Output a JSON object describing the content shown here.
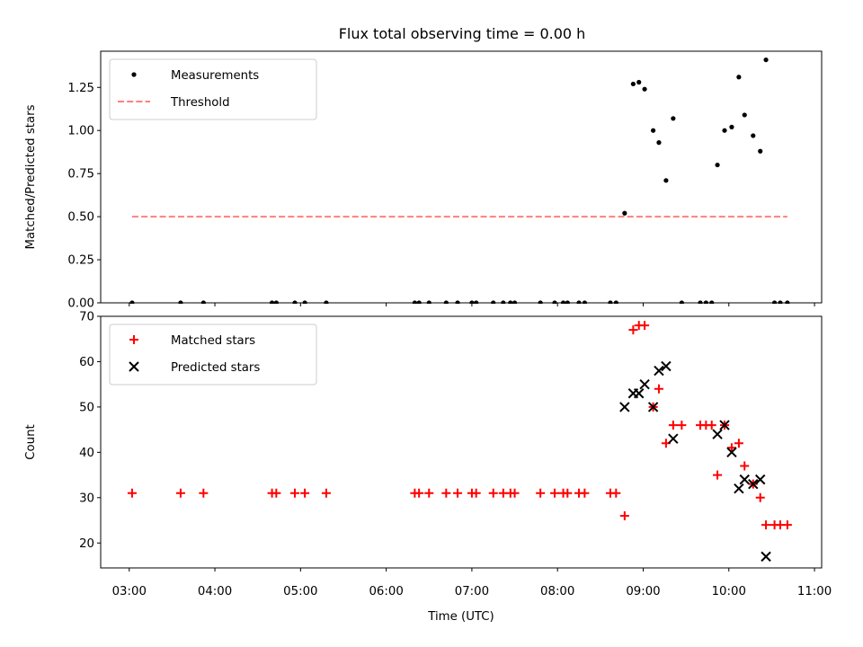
{
  "chart_data": [
    {
      "type": "scatter",
      "title": "Flux total observing time = 0.00 h",
      "ylabel": "Matched/Predicted stars",
      "xlabel": "",
      "xlim": [
        "02:40",
        "11:05"
      ],
      "ylim": [
        0,
        1.46
      ],
      "yticks": [
        "0.00",
        "0.25",
        "0.50",
        "0.75",
        "1.00",
        "1.25"
      ],
      "legend_position": "top-left",
      "series": [
        {
          "name": "Measurements",
          "marker": "dot",
          "color": "#000000",
          "points": [
            [
              "03:02",
              0
            ],
            [
              "03:36",
              0
            ],
            [
              "03:52",
              0
            ],
            [
              "04:40",
              0
            ],
            [
              "04:43",
              0
            ],
            [
              "04:56",
              0
            ],
            [
              "05:03",
              0
            ],
            [
              "05:18",
              0
            ],
            [
              "06:20",
              0
            ],
            [
              "06:23",
              0
            ],
            [
              "06:30",
              0
            ],
            [
              "06:42",
              0
            ],
            [
              "06:50",
              0
            ],
            [
              "07:00",
              0
            ],
            [
              "07:03",
              0
            ],
            [
              "07:15",
              0
            ],
            [
              "07:22",
              0
            ],
            [
              "07:27",
              0
            ],
            [
              "07:30",
              0
            ],
            [
              "07:48",
              0
            ],
            [
              "07:58",
              0
            ],
            [
              "08:04",
              0
            ],
            [
              "08:07",
              0
            ],
            [
              "08:15",
              0
            ],
            [
              "08:19",
              0
            ],
            [
              "08:37",
              0
            ],
            [
              "08:41",
              0
            ],
            [
              "08:47",
              0.52
            ],
            [
              "08:53",
              1.27
            ],
            [
              "08:57",
              1.28
            ],
            [
              "09:01",
              1.24
            ],
            [
              "09:07",
              1.0
            ],
            [
              "09:11",
              0.93
            ],
            [
              "09:16",
              0.71
            ],
            [
              "09:21",
              1.07
            ],
            [
              "09:27",
              0
            ],
            [
              "09:40",
              0
            ],
            [
              "09:44",
              0
            ],
            [
              "09:48",
              0
            ],
            [
              "09:52",
              0.8
            ],
            [
              "09:57",
              1.0
            ],
            [
              "10:02",
              1.02
            ],
            [
              "10:07",
              1.31
            ],
            [
              "10:11",
              1.09
            ],
            [
              "10:17",
              0.97
            ],
            [
              "10:22",
              0.88
            ],
            [
              "10:26",
              1.41
            ],
            [
              "10:32",
              0
            ],
            [
              "10:36",
              0
            ],
            [
              "10:41",
              0
            ]
          ]
        },
        {
          "name": "Threshold",
          "style": "dashed-line",
          "color": "#ff7f7f",
          "points": [
            [
              "03:02",
              0.5
            ],
            [
              "10:41",
              0.5
            ]
          ]
        }
      ]
    },
    {
      "type": "scatter",
      "title": "",
      "ylabel": "Count",
      "xlabel": "Time (UTC)",
      "xlim": [
        "02:40",
        "11:05"
      ],
      "xticks": [
        "03:00",
        "04:00",
        "05:00",
        "06:00",
        "07:00",
        "08:00",
        "09:00",
        "10:00",
        "11:00"
      ],
      "ylim": [
        14.5,
        70
      ],
      "yticks": [
        "20",
        "30",
        "40",
        "50",
        "60",
        "70"
      ],
      "legend_position": "top-left",
      "series": [
        {
          "name": "Matched stars",
          "marker": "plus",
          "color": "#ff0000",
          "points": [
            [
              "03:02",
              31
            ],
            [
              "03:36",
              31
            ],
            [
              "03:52",
              31
            ],
            [
              "04:40",
              31
            ],
            [
              "04:43",
              31
            ],
            [
              "04:56",
              31
            ],
            [
              "05:03",
              31
            ],
            [
              "05:18",
              31
            ],
            [
              "06:20",
              31
            ],
            [
              "06:23",
              31
            ],
            [
              "06:30",
              31
            ],
            [
              "06:42",
              31
            ],
            [
              "06:50",
              31
            ],
            [
              "07:00",
              31
            ],
            [
              "07:03",
              31
            ],
            [
              "07:15",
              31
            ],
            [
              "07:22",
              31
            ],
            [
              "07:27",
              31
            ],
            [
              "07:30",
              31
            ],
            [
              "07:48",
              31
            ],
            [
              "07:58",
              31
            ],
            [
              "08:04",
              31
            ],
            [
              "08:07",
              31
            ],
            [
              "08:15",
              31
            ],
            [
              "08:19",
              31
            ],
            [
              "08:37",
              31
            ],
            [
              "08:41",
              31
            ],
            [
              "08:47",
              26
            ],
            [
              "08:53",
              67
            ],
            [
              "08:57",
              68
            ],
            [
              "09:01",
              68
            ],
            [
              "09:07",
              50
            ],
            [
              "09:11",
              54
            ],
            [
              "09:16",
              42
            ],
            [
              "09:21",
              46
            ],
            [
              "09:27",
              46
            ],
            [
              "09:40",
              46
            ],
            [
              "09:44",
              46
            ],
            [
              "09:48",
              46
            ],
            [
              "09:52",
              35
            ],
            [
              "09:57",
              46
            ],
            [
              "10:02",
              41
            ],
            [
              "10:07",
              42
            ],
            [
              "10:11",
              37
            ],
            [
              "10:17",
              33
            ],
            [
              "10:22",
              30
            ],
            [
              "10:26",
              24
            ],
            [
              "10:32",
              24
            ],
            [
              "10:36",
              24
            ],
            [
              "10:41",
              24
            ]
          ]
        },
        {
          "name": "Predicted stars",
          "marker": "x",
          "color": "#000000",
          "points": [
            [
              "08:47",
              50
            ],
            [
              "08:53",
              53
            ],
            [
              "08:57",
              53
            ],
            [
              "09:01",
              55
            ],
            [
              "09:07",
              50
            ],
            [
              "09:11",
              58
            ],
            [
              "09:16",
              59
            ],
            [
              "09:21",
              43
            ],
            [
              "09:52",
              44
            ],
            [
              "09:57",
              46
            ],
            [
              "10:02",
              40
            ],
            [
              "10:07",
              32
            ],
            [
              "10:11",
              34
            ],
            [
              "10:17",
              33
            ],
            [
              "10:22",
              34
            ],
            [
              "10:26",
              17
            ]
          ]
        }
      ]
    }
  ]
}
